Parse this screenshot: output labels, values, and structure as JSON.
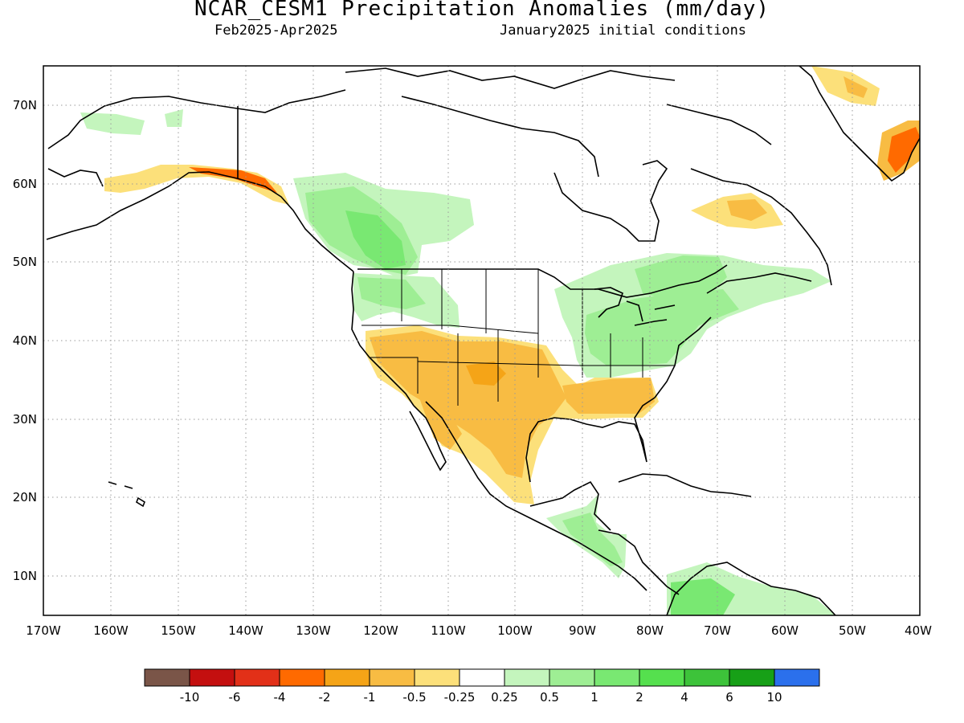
{
  "header": {
    "title": "NCAR_CESM1 Precipitation Anomalies (mm/day)",
    "period": "Feb2025-Apr2025",
    "init": "January2025 initial conditions"
  },
  "map": {
    "lat_labels": [
      "70N",
      "60N",
      "50N",
      "40N",
      "30N",
      "20N",
      "10N"
    ],
    "lon_labels": [
      "170W",
      "160W",
      "150W",
      "140W",
      "130W",
      "120W",
      "110W",
      "100W",
      "90W",
      "80W",
      "70W",
      "60W",
      "50W",
      "40W"
    ]
  },
  "legend": {
    "tick_labels": [
      "-10",
      "-6",
      "-4",
      "-2",
      "-1",
      "-0.5",
      "-0.25",
      "0.25",
      "0.5",
      "1",
      "2",
      "4",
      "6",
      "10"
    ],
    "colors": [
      "#7a5548",
      "#c40f0f",
      "#e23018",
      "#ff6a00",
      "#f5a417",
      "#f8bc43",
      "#fce07a",
      "#ffffff",
      "#c4f5bd",
      "#9eee94",
      "#79e872",
      "#55e04e",
      "#3dc33a",
      "#17a017",
      "#2b70ec"
    ]
  },
  "colors": {
    "dry_light": "#fce07a",
    "dry": "#f8bc43",
    "dry_strong": "#f5a417",
    "dry_heavy": "#ff6a00",
    "wet_light": "#c4f5bd",
    "wet": "#9eee94",
    "wet_strong": "#79e872",
    "wet_heavy": "#55e04e",
    "grid": "#9a9a9a",
    "coast": "#000000"
  }
}
